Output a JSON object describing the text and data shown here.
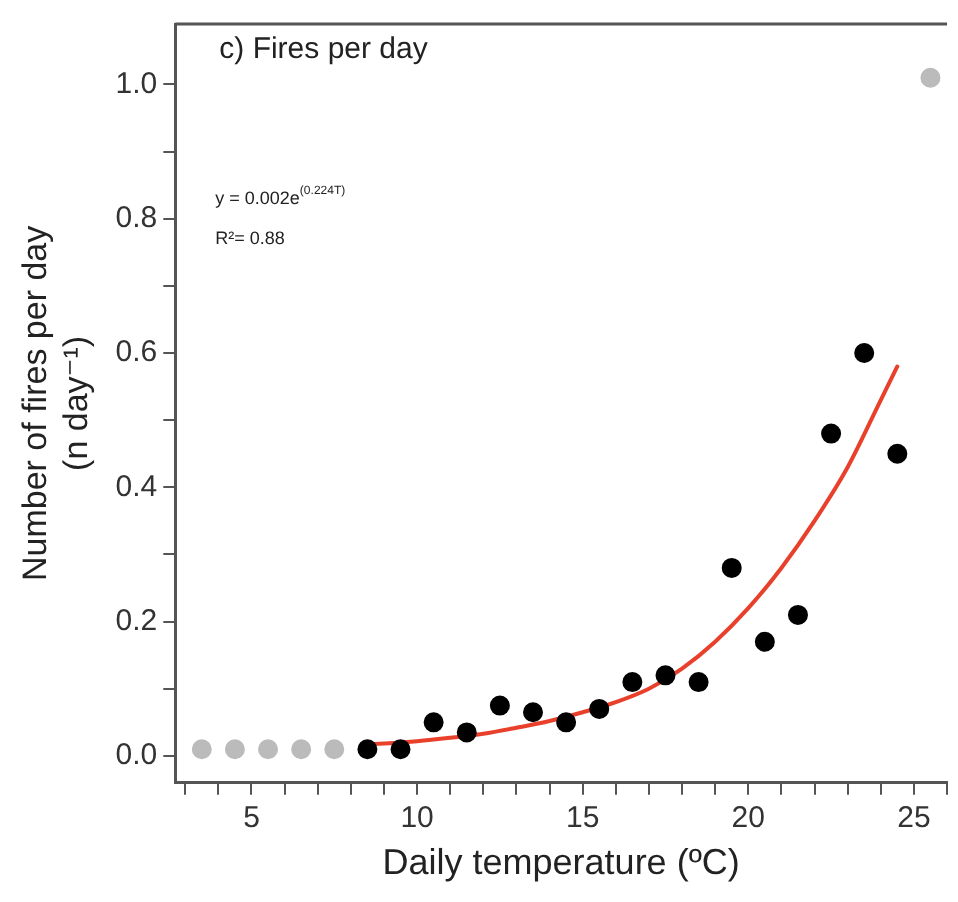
{
  "chart_data": {
    "type": "scatter",
    "title": "c) Fires per day",
    "xlabel": "Daily temperature (ºC)",
    "ylabel": "Number of fires per day\n(n day⁻¹)",
    "annotations": [
      "y = 0.002e$^{(0.224T)}$",
      "R²= 0.88"
    ],
    "series": [
      {
        "color": "#000000",
        "x": [
          8.5,
          9.5,
          10.5,
          11.5,
          12.5,
          13.5,
          14.5,
          15.5,
          16.5,
          17.5,
          18.5,
          19.5,
          20.5,
          21.5,
          22.5,
          23.5,
          24.5
        ],
        "values": [
          0.01,
          0.01,
          0.05,
          0.035,
          0.075,
          0.065,
          0.05,
          0.07,
          0.11,
          0.12,
          0.11,
          0.28,
          0.17,
          0.21,
          0.48,
          0.6,
          0.45
        ]
      },
      {
        "color": "#bbbbbb",
        "x": [
          3.5,
          4.5,
          5.5,
          6.5,
          7.5,
          25.5
        ],
        "values": [
          0.01,
          0.01,
          0.01,
          0.01,
          0.01,
          1.01
        ]
      },
      {
        "type": "line",
        "color": "#e8402a",
        "marker": "none",
        "x": [
          8.5,
          10,
          11,
          12,
          13,
          14,
          15,
          16,
          17,
          18,
          19,
          20,
          21,
          22,
          23,
          24,
          24.5
        ],
        "values": [
          0.017,
          0.022,
          0.027,
          0.033,
          0.042,
          0.052,
          0.065,
          0.08,
          0.1,
          0.13,
          0.17,
          0.22,
          0.28,
          0.35,
          0.43,
          0.53,
          0.58
        ]
      }
    ],
    "marker": "circle",
    "grid": false,
    "legend": false,
    "xlim": [
      2.7,
      26
    ],
    "ylim": [
      -0.04,
      1.09
    ],
    "xticks": [
      {
        "value": 3,
        "label": null
      },
      {
        "value": 4,
        "label": null
      },
      5,
      {
        "value": 6,
        "label": null
      },
      {
        "value": 7,
        "label": null
      },
      {
        "value": 8,
        "label": null
      },
      {
        "value": 9,
        "label": null
      },
      10,
      {
        "value": 11,
        "label": null
      },
      {
        "value": 12,
        "label": null
      },
      {
        "value": 13,
        "label": null
      },
      {
        "value": 14,
        "label": null
      },
      15,
      {
        "value": 16,
        "label": null
      },
      {
        "value": 17,
        "label": null
      },
      {
        "value": 18,
        "label": null
      },
      {
        "value": 19,
        "label": null
      },
      20,
      {
        "value": 21,
        "label": null
      },
      {
        "value": 22,
        "label": null
      },
      {
        "value": 23,
        "label": null
      },
      {
        "value": 24,
        "label": null
      },
      25,
      {
        "value": 26,
        "label": null
      }
    ],
    "yticks": [
      {
        "value": 0,
        "label": "0.0"
      },
      {
        "value": 0.1,
        "label": null
      },
      {
        "value": 0.2,
        "label": "0.2"
      },
      {
        "value": 0.3,
        "label": null
      },
      {
        "value": 0.4,
        "label": "0.4"
      },
      {
        "value": 0.5,
        "label": null
      },
      {
        "value": 0.6,
        "label": "0.6"
      },
      {
        "value": 0.7,
        "label": null
      },
      {
        "value": 0.8,
        "label": "0.8"
      },
      {
        "value": 0.9,
        "label": null
      },
      {
        "value": 1,
        "label": "1.0"
      }
    ]
  }
}
